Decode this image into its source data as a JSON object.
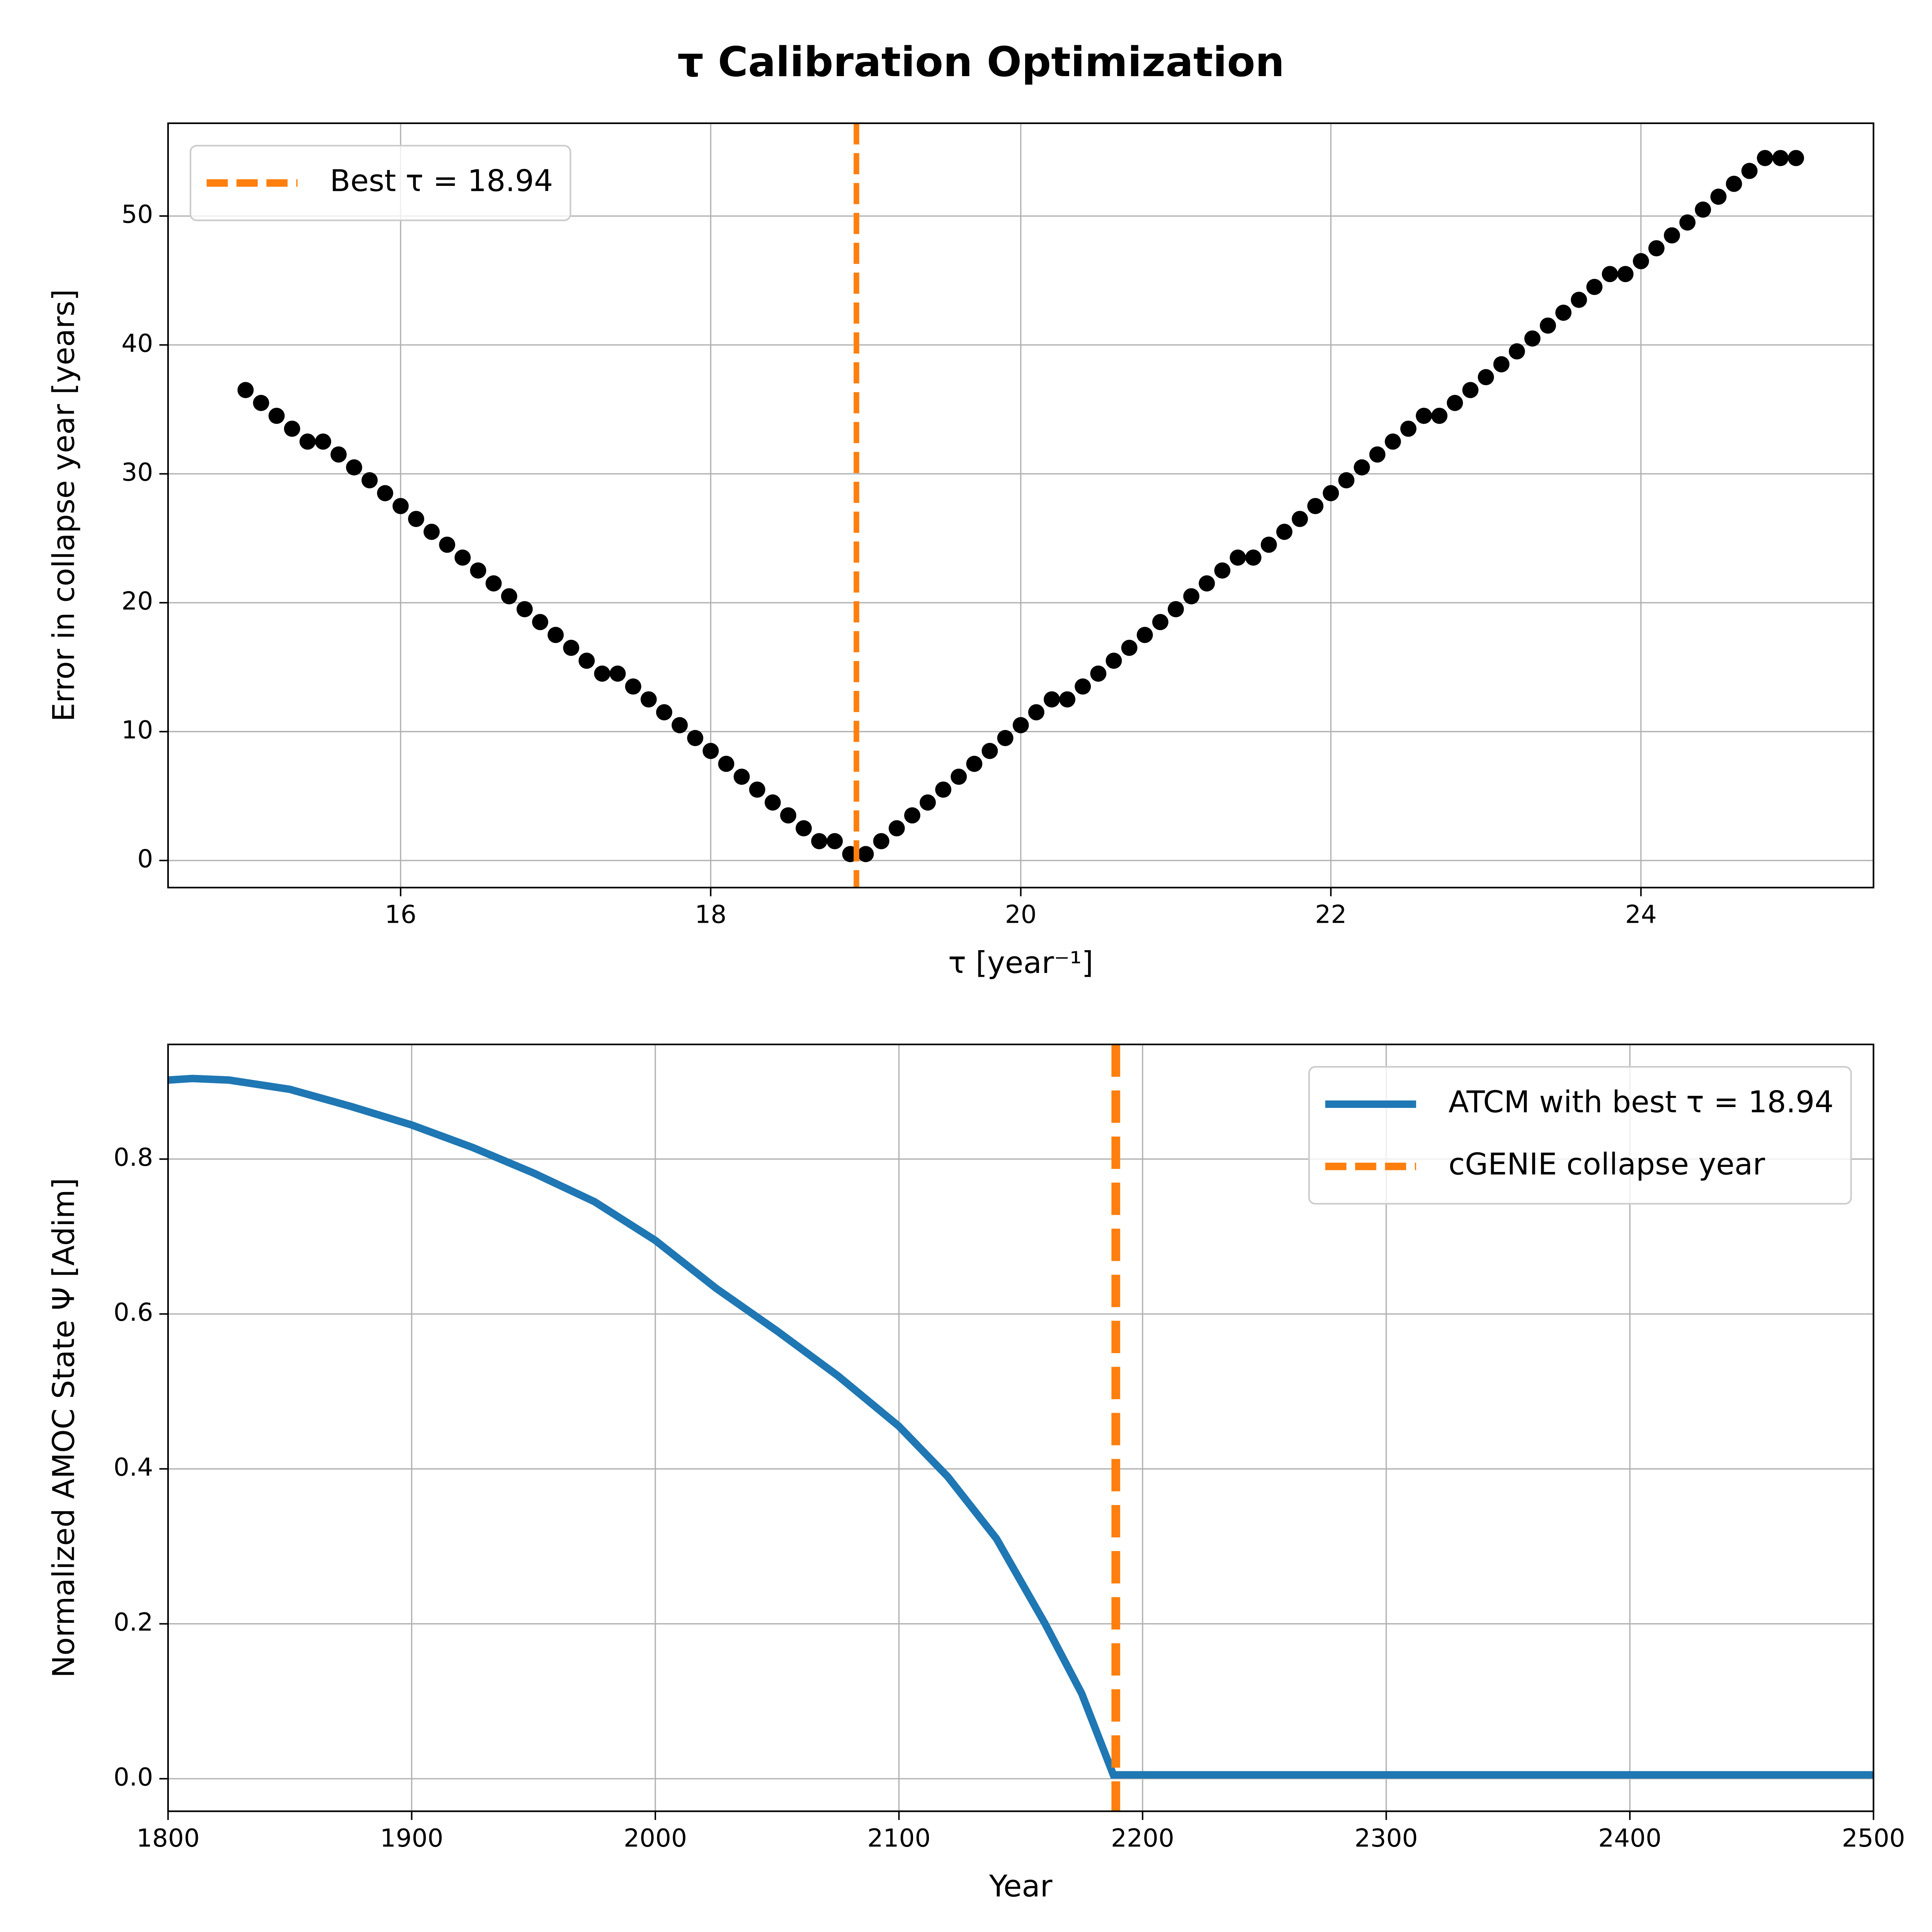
{
  "title": "τ Calibration Optimization",
  "chart_data": [
    {
      "type": "scatter",
      "xlabel": "τ [year⁻¹]",
      "ylabel": "Error in collapse year [years]",
      "x": [
        15.0,
        15.1,
        15.2,
        15.3,
        15.4,
        15.5,
        15.6,
        15.7,
        15.8,
        15.9,
        16.0,
        16.1,
        16.2,
        16.3,
        16.4,
        16.5,
        16.6,
        16.7,
        16.8,
        16.9,
        17.0,
        17.1,
        17.2,
        17.3,
        17.4,
        17.5,
        17.6,
        17.7,
        17.8,
        17.9,
        18.0,
        18.1,
        18.2,
        18.3,
        18.4,
        18.5,
        18.6,
        18.7,
        18.8,
        18.9,
        19.0,
        19.1,
        19.2,
        19.3,
        19.4,
        19.5,
        19.6,
        19.7,
        19.8,
        19.9,
        20.0,
        20.1,
        20.2,
        20.3,
        20.4,
        20.5,
        20.6,
        20.7,
        20.8,
        20.9,
        21.0,
        21.1,
        21.2,
        21.3,
        21.4,
        21.5,
        21.6,
        21.7,
        21.8,
        21.9,
        22.0,
        22.1,
        22.2,
        22.3,
        22.4,
        22.5,
        22.6,
        22.7,
        22.8,
        22.9,
        23.0,
        23.1,
        23.2,
        23.3,
        23.4,
        23.5,
        23.6,
        23.7,
        23.8,
        23.9,
        24.0,
        24.1,
        24.2,
        24.3,
        24.4,
        24.5,
        24.6,
        24.7,
        24.8,
        24.9,
        25.0
      ],
      "series": [
        {
          "color": "#000000",
          "values": [
            36.5,
            35.5,
            34.5,
            33.5,
            32.5,
            32.5,
            31.5,
            30.5,
            29.5,
            28.5,
            27.5,
            26.5,
            25.5,
            24.5,
            23.5,
            22.5,
            21.5,
            20.5,
            19.5,
            18.5,
            17.5,
            16.5,
            15.5,
            14.5,
            14.5,
            13.5,
            12.5,
            11.5,
            10.5,
            9.5,
            8.5,
            7.5,
            6.5,
            5.5,
            4.5,
            3.5,
            2.5,
            1.5,
            1.5,
            0.5,
            0.5,
            1.5,
            2.5,
            3.5,
            4.5,
            5.5,
            6.5,
            7.5,
            8.5,
            9.5,
            10.5,
            11.5,
            12.5,
            12.5,
            13.5,
            14.5,
            15.5,
            16.5,
            17.5,
            18.5,
            19.5,
            20.5,
            21.5,
            22.5,
            23.5,
            23.5,
            24.5,
            25.5,
            26.5,
            27.5,
            28.5,
            29.5,
            30.5,
            31.5,
            32.5,
            33.5,
            34.5,
            34.5,
            35.5,
            36.5,
            37.5,
            38.5,
            39.5,
            40.5,
            41.5,
            42.5,
            43.5,
            44.5,
            45.5,
            45.5,
            46.5,
            47.5,
            48.5,
            49.5,
            50.5,
            51.5,
            52.5,
            53.5,
            54.5,
            54.5,
            54.5
          ]
        }
      ],
      "vlines": [
        {
          "x": 18.94,
          "name": "Best τ = 18.94",
          "color": "#ff7f0e"
        }
      ],
      "xlim": [
        14.5,
        25.5
      ],
      "ylim": [
        -2.1,
        57.2
      ],
      "xticks": [
        16,
        18,
        20,
        22,
        24
      ],
      "yticks": [
        0,
        10,
        20,
        30,
        40,
        50
      ],
      "grid": true,
      "legend": "upper left"
    },
    {
      "type": "line",
      "xlabel": "Year",
      "ylabel": "Normalized AMOC State Ψ [Adim]",
      "x": [
        1800,
        1810,
        1825,
        1850,
        1875,
        1900,
        1925,
        1950,
        1975,
        2000,
        2025,
        2050,
        2075,
        2100,
        2120,
        2140,
        2160,
        2175,
        2188,
        2200,
        2300,
        2400,
        2500
      ],
      "series": [
        {
          "name": "ATCM with best τ = 18.94",
          "color": "#1f77b4",
          "values": [
            0.902,
            0.904,
            0.902,
            0.89,
            0.868,
            0.844,
            0.815,
            0.782,
            0.745,
            0.695,
            0.633,
            0.578,
            0.52,
            0.455,
            0.39,
            0.31,
            0.2,
            0.11,
            0.005,
            0.005,
            0.005,
            0.005,
            0.005
          ]
        }
      ],
      "vlines": [
        {
          "x": 2189,
          "name": "cGENIE collapse year",
          "color": "#ff7f0e"
        }
      ],
      "xlim": [
        1800,
        2500
      ],
      "ylim": [
        -0.042,
        0.948
      ],
      "xticks": [
        1800,
        1900,
        2000,
        2100,
        2200,
        2300,
        2400,
        2500
      ],
      "yticks": [
        {
          "value": 0,
          "label": "0.0"
        },
        0.2,
        0.4,
        0.6,
        0.8
      ],
      "grid": true,
      "legend": "upper right"
    }
  ]
}
